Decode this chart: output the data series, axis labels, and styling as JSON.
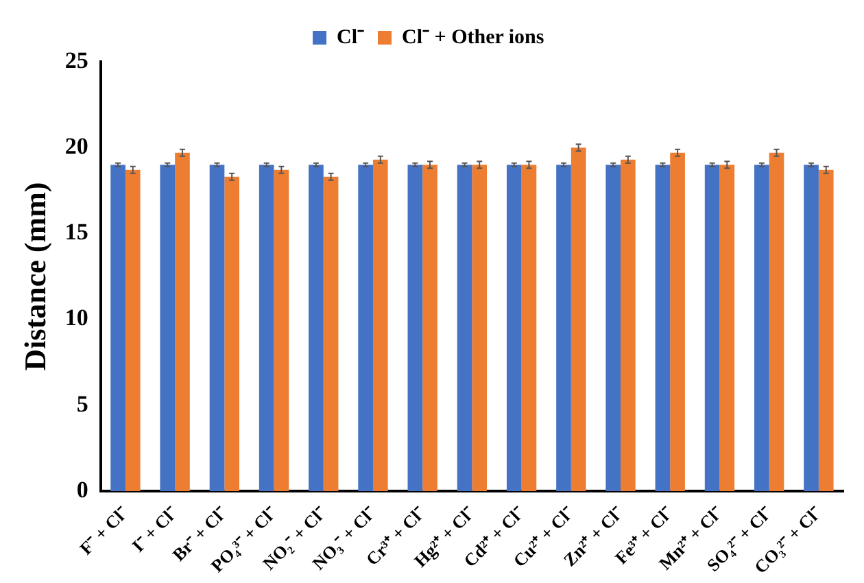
{
  "chart_data": {
    "type": "bar",
    "ylabel": "Distance (mm)",
    "categories": [
      "F⁻ + Cl⁻",
      "I⁻ + Cl⁻",
      "Br⁻ + Cl⁻",
      "PO₄³⁻ + Cl⁻",
      "NO₂⁻ + Cl⁻",
      "NO₃⁻ + Cl⁻",
      "Cr³⁺ + Cl⁻",
      "Hg²⁺ + Cl⁻",
      "Cd²⁺ + Cl⁻",
      "Cu²⁺ + Cl⁻",
      "Zn²⁺ + Cl⁻",
      "Fe³⁺ + Cl⁻",
      "Mn²⁺ + Cl⁻",
      "SO₄²⁻ + Cl⁻",
      "CO₃²⁻ + Cl⁻"
    ],
    "series": [
      {
        "name": "Cl⁻",
        "color": "#4472c4",
        "values": [
          19,
          19,
          19,
          19,
          19,
          19,
          19,
          19,
          19,
          19,
          19,
          19,
          19,
          19,
          19
        ],
        "errors": [
          0.1,
          0.1,
          0.1,
          0.1,
          0.1,
          0.1,
          0.1,
          0.1,
          0.1,
          0.1,
          0.1,
          0.1,
          0.1,
          0.1,
          0.1
        ]
      },
      {
        "name": "Cl⁻ + Other ions",
        "color": "#ed7d31",
        "values": [
          18.7,
          19.7,
          18.3,
          18.7,
          18.3,
          19.3,
          19.0,
          19.0,
          19.0,
          20.0,
          19.3,
          19.7,
          19.0,
          19.7,
          18.7
        ],
        "errors": [
          0.2,
          0.2,
          0.2,
          0.2,
          0.2,
          0.2,
          0.2,
          0.2,
          0.2,
          0.2,
          0.2,
          0.2,
          0.2,
          0.2,
          0.2
        ]
      }
    ],
    "ylim": [
      0,
      25
    ],
    "yticks": [
      0,
      5,
      10,
      15,
      20,
      25
    ],
    "grid": false,
    "legend": "top"
  }
}
